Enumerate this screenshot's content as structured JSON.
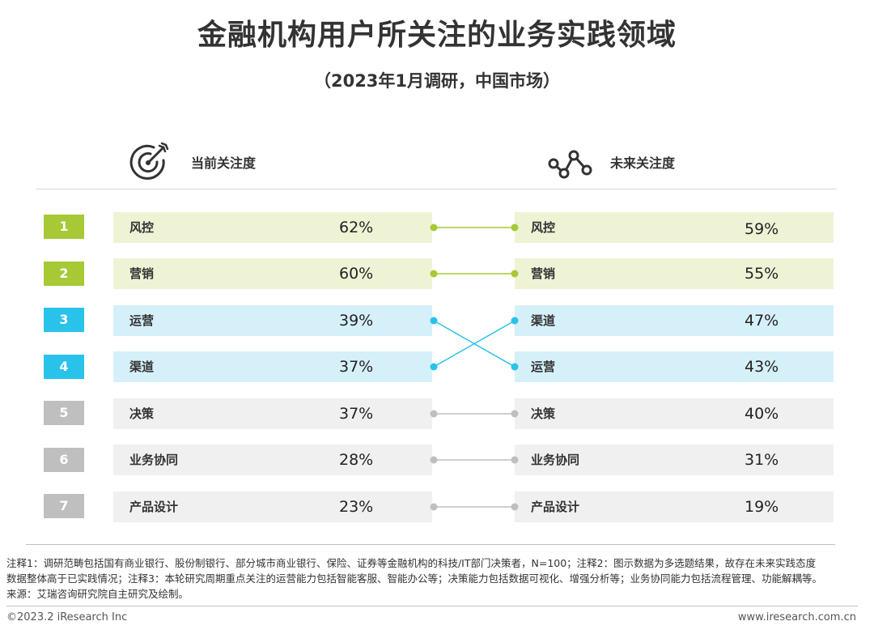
{
  "title": "金融机构用户所关注的业务实践领域",
  "subtitle": "（2023年1月调研，中国市场）",
  "headers": {
    "current": "当前关注度",
    "future": "未来关注度"
  },
  "colors": {
    "green": "#a6c935",
    "green_band": "#eef3d6",
    "blue": "#29c2eb",
    "blue_band": "#d6f0fa",
    "gray": "#bfbfbf",
    "gray_band": "#f0f0f0"
  },
  "chart_data": {
    "type": "table",
    "ranks": [
      "1",
      "2",
      "3",
      "4",
      "5",
      "6",
      "7"
    ],
    "current": [
      {
        "label": "风控",
        "value": "62%"
      },
      {
        "label": "营销",
        "value": "60%"
      },
      {
        "label": "运营",
        "value": "39%"
      },
      {
        "label": "渠道",
        "value": "37%"
      },
      {
        "label": "决策",
        "value": "37%"
      },
      {
        "label": "业务协同",
        "value": "28%"
      },
      {
        "label": "产品设计",
        "value": "23%"
      }
    ],
    "future": [
      {
        "label": "风控",
        "value": "59%"
      },
      {
        "label": "营销",
        "value": "55%"
      },
      {
        "label": "渠道",
        "value": "47%"
      },
      {
        "label": "运营",
        "value": "43%"
      },
      {
        "label": "决策",
        "value": "40%"
      },
      {
        "label": "业务协同",
        "value": "31%"
      },
      {
        "label": "产品设计",
        "value": "19%"
      }
    ],
    "links": [
      [
        0,
        0
      ],
      [
        1,
        1
      ],
      [
        2,
        3
      ],
      [
        3,
        2
      ],
      [
        4,
        4
      ],
      [
        5,
        5
      ],
      [
        6,
        6
      ]
    ]
  },
  "footer": {
    "note1": "注释1：调研范畴包括国有商业银行、股份制银行、部分城市商业银行、保险、证券等金融机构的科技/IT部门决策者，N=100；注释2：图示数据为多选题结果，故存在未来实践态度",
    "note2": "数据整体高于已实践情况；注释3：本轮研究周期重点关注的运营能力包括智能客服、智能办公等；决策能力包括数据可视化、增强分析等；业务协同能力包括流程管理、功能解耦等。",
    "source": "来源：艾瑞咨询研究院自主研究及绘制。",
    "copyright": "©2023.2 iResearch Inc",
    "website": "www.iresearch.com.cn"
  }
}
